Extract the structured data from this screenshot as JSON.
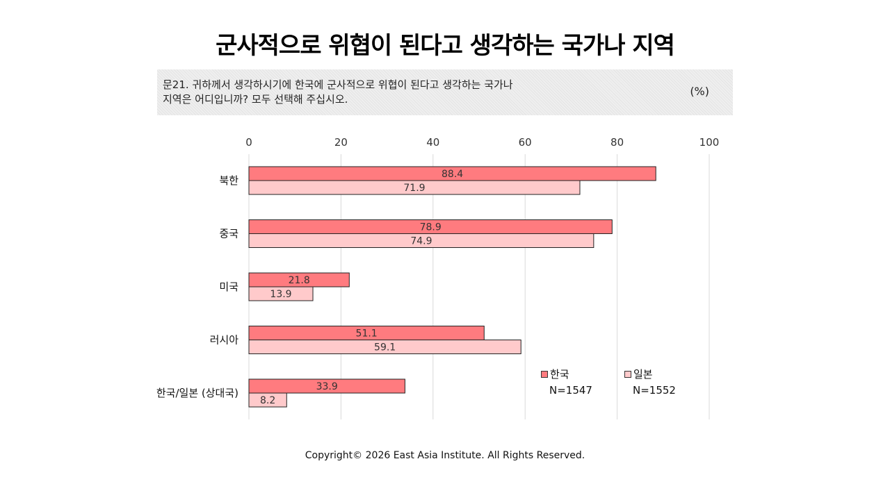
{
  "title": "군사적으로 위협이 된다고 생각하는 국가나 지역",
  "question": {
    "line1": "문21. 귀하께서 생각하시기에 한국에 군사적으로 위협이 된다고 생각하는 국가나",
    "line2": "지역은 어디입니까? 모두 선택해 주십시오.",
    "unit": "(%)"
  },
  "legend": {
    "korea": {
      "label": "한국",
      "n": "N=1547"
    },
    "japan": {
      "label": "일본",
      "n": "N=1552"
    }
  },
  "footer": "Copyright© 2026 East Asia Institute. All Rights Reserved.",
  "colors": {
    "korea": "#ff7b7f",
    "japan": "#ffcacb",
    "grid": "#d9d9d9",
    "border": "#222222"
  },
  "chart_data": {
    "type": "bar",
    "orientation": "horizontal",
    "categories": [
      "북한",
      "중국",
      "미국",
      "러시아",
      "한국/일본 (상대국)"
    ],
    "series": [
      {
        "name": "한국",
        "values": [
          88.4,
          78.9,
          21.8,
          51.1,
          33.9
        ]
      },
      {
        "name": "일본",
        "values": [
          71.9,
          74.9,
          13.9,
          59.1,
          8.2
        ]
      }
    ],
    "xlim": [
      0,
      100
    ],
    "xticks": [
      0,
      20,
      40,
      60,
      80,
      100
    ],
    "xaxis_position": "top",
    "grid": true,
    "legend_position": "bottom-right"
  }
}
